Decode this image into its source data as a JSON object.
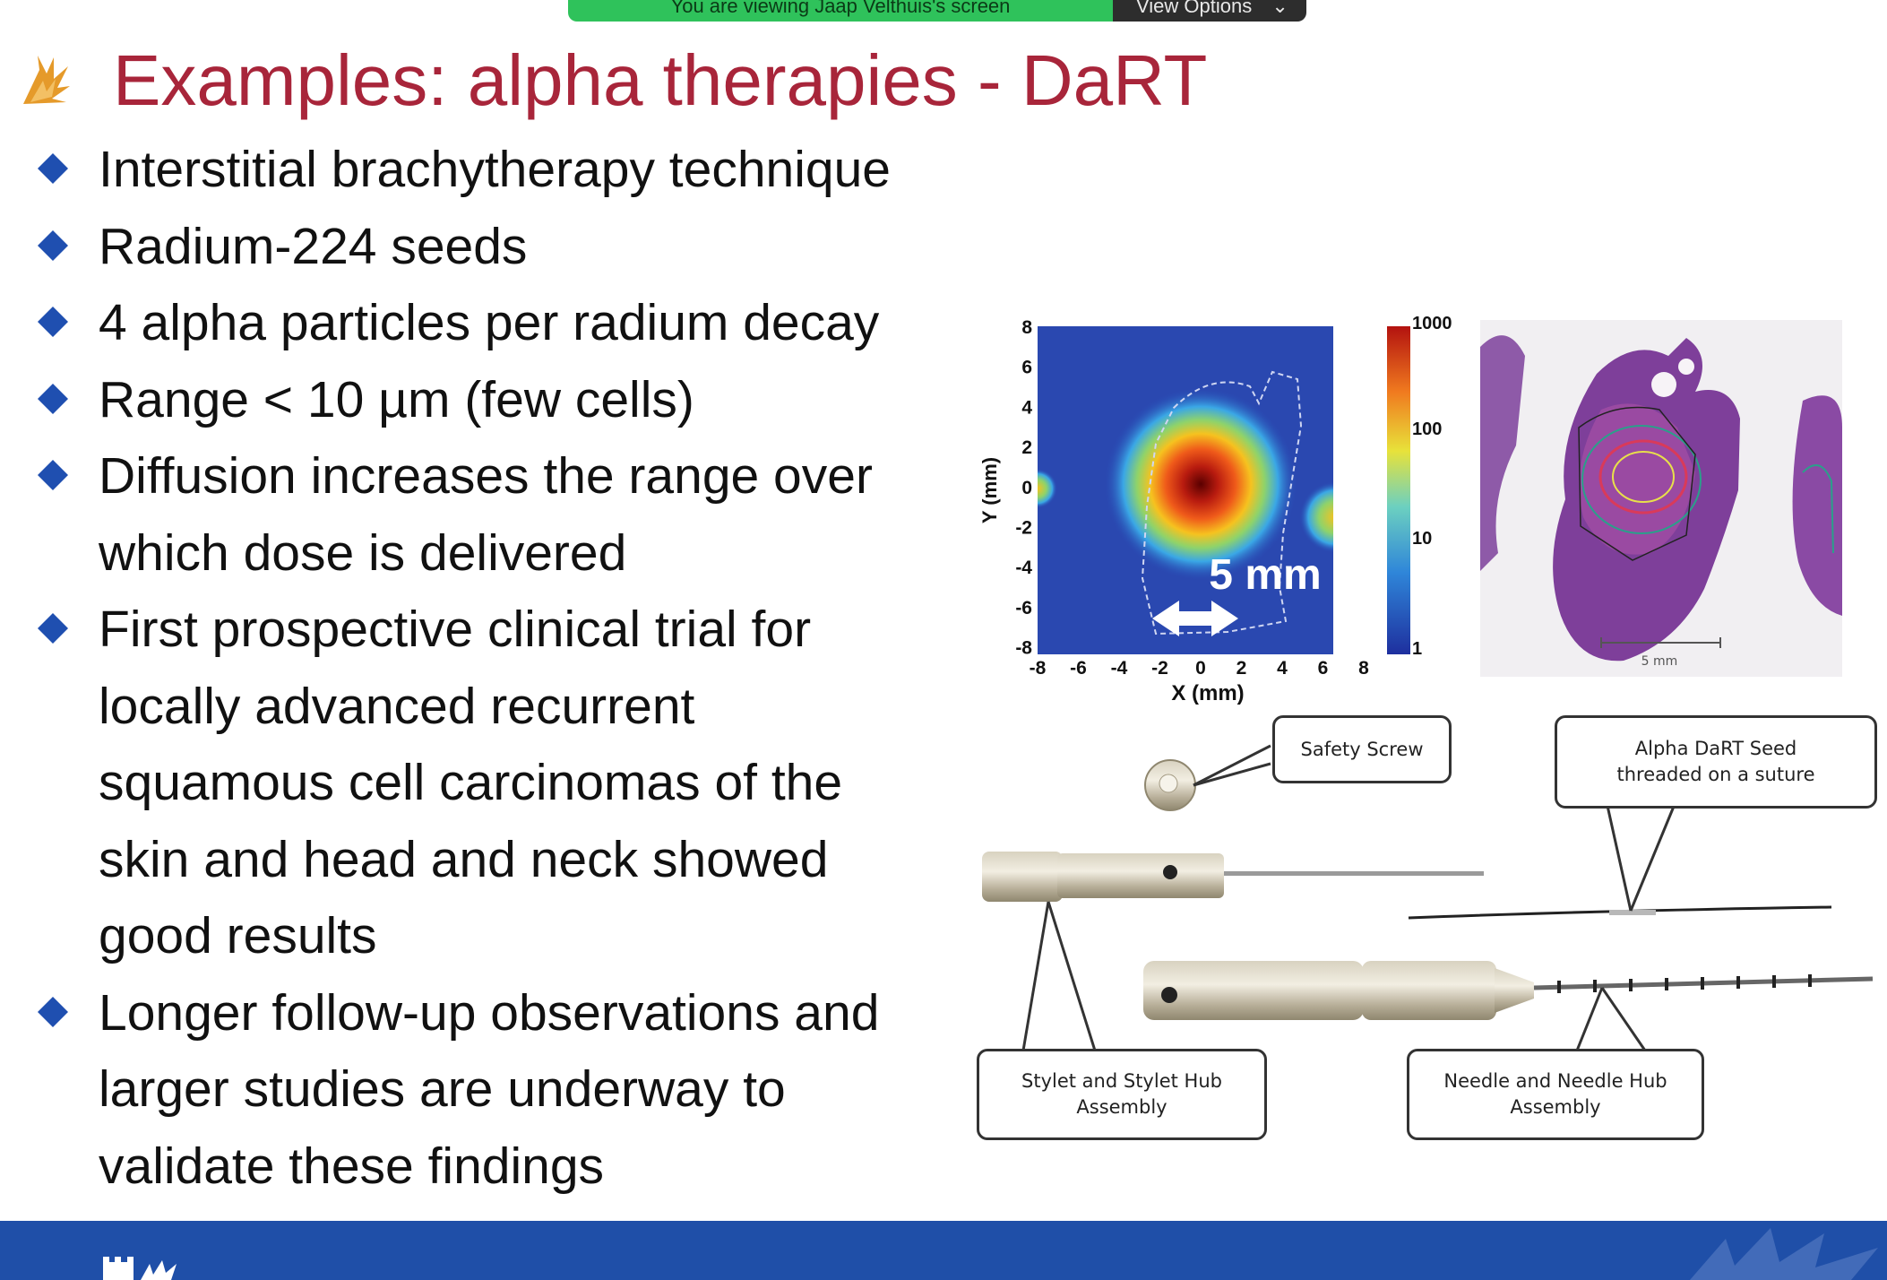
{
  "share_banner": {
    "message": "You are viewing Jaap Velthuis's screen",
    "options_label": "View Options"
  },
  "slide": {
    "title": "Examples: alpha therapies - DaRT",
    "bullets": [
      {
        "lines": [
          "Interstitial brachytherapy technique"
        ]
      },
      {
        "lines": [
          "Radium-224 seeds"
        ]
      },
      {
        "lines": [
          "4 alpha particles per radium decay"
        ]
      },
      {
        "lines": [
          "Range < 10 µm (few cells)"
        ]
      },
      {
        "lines": [
          "Diffusion increases the range over",
          "which dose is delivered"
        ]
      },
      {
        "lines": [
          "First prospective clinical trial for",
          "locally advanced recurrent",
          "squamous cell carcinomas of the",
          "skin and head and neck showed",
          "good results"
        ]
      },
      {
        "lines": [
          "Longer follow-up observations and",
          "larger studies are underway to",
          "validate these findings"
        ]
      }
    ]
  },
  "heatmap": {
    "xlabel": "X (mm)",
    "ylabel": "Y (mm)",
    "x_ticks": [
      "-8",
      "-6",
      "-4",
      "-2",
      "0",
      "2",
      "4",
      "6",
      "8"
    ],
    "y_ticks": [
      "8",
      "6",
      "4",
      "2",
      "0",
      "-2",
      "-4",
      "-6",
      "-8"
    ],
    "scale_label": "5 mm",
    "colorbar_ticks": [
      "1000",
      "100",
      "10",
      "1"
    ]
  },
  "histology": {
    "scale_label": "5 mm"
  },
  "device": {
    "callouts": {
      "safety_screw": "Safety Screw",
      "alpha_seed": [
        "Alpha DaRT Seed",
        "threaded on a suture"
      ],
      "stylet": [
        "Stylet and Stylet Hub",
        "Assembly"
      ],
      "needle": [
        "Needle and Needle Hub",
        "Assembly"
      ]
    }
  },
  "colors": {
    "title": "#a8253a",
    "bullet": "#1f4fb0",
    "footer": "#1f4fa8"
  }
}
